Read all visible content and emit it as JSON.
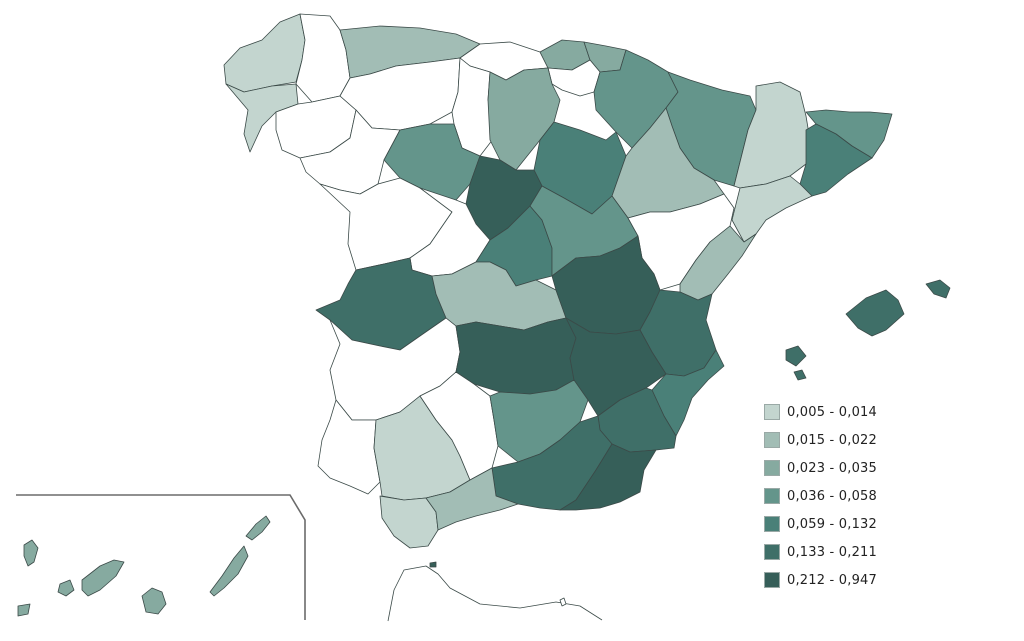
{
  "colors": {
    "class_1": "#c3d5cf",
    "class_2": "#a2bdb5",
    "class_3": "#86aaa0",
    "class_4": "#64958b",
    "class_5": "#4a8078",
    "class_6": "#3f6f68",
    "class_7": "#365f59",
    "no_data": "#ffffff"
  },
  "legend": {
    "items": [
      {
        "label": "0,005 - 0,014",
        "color": "#c3d5cf"
      },
      {
        "label": "0,015 - 0,022",
        "color": "#a2bdb5"
      },
      {
        "label": "0,023 - 0,035",
        "color": "#86aaa0"
      },
      {
        "label": "0,036 - 0,058",
        "color": "#64958b"
      },
      {
        "label": "0,059 - 0,132",
        "color": "#4a8078"
      },
      {
        "label": "0,133 - 0,211",
        "color": "#3f6f68"
      },
      {
        "label": "0,212 - 0,947",
        "color": "#365f59"
      }
    ]
  }
}
